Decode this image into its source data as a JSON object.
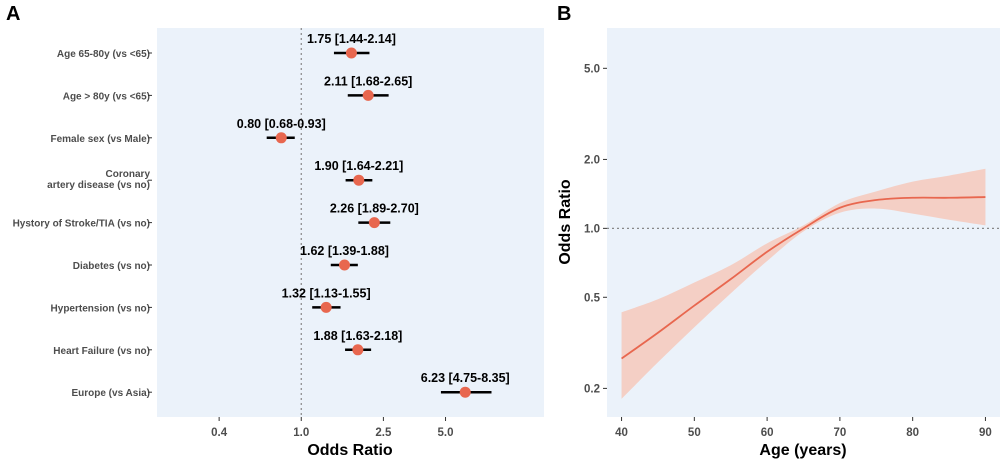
{
  "chart_data": [
    {
      "panel": "A",
      "type": "forest",
      "xlabel": "Odds Ratio",
      "xscale": "log",
      "xlim": [
        0.2,
        15
      ],
      "xticks": [
        0.4,
        1.0,
        2.5,
        5.0
      ],
      "xtick_labels": [
        "0.4",
        "1.0",
        "2.5",
        "5.0"
      ],
      "reference_line": 1.0,
      "background": "#ebf2fa",
      "point_color": "#e8674f",
      "rows": [
        {
          "label": [
            "Age 65-80y (vs <65)"
          ],
          "or": 1.75,
          "lo": 1.44,
          "hi": 2.14,
          "text": "1.75 [1.44-2.14]"
        },
        {
          "label": [
            "Age > 80y (vs <65)"
          ],
          "or": 2.11,
          "lo": 1.68,
          "hi": 2.65,
          "text": "2.11 [1.68-2.65]"
        },
        {
          "label": [
            "Female sex (vs Male)"
          ],
          "or": 0.8,
          "lo": 0.68,
          "hi": 0.93,
          "text": "0.80 [0.68-0.93]"
        },
        {
          "label": [
            "Coronary",
            "artery disease (vs no)"
          ],
          "or": 1.9,
          "lo": 1.64,
          "hi": 2.21,
          "text": "1.90 [1.64-2.21]"
        },
        {
          "label": [
            "Hystory of Stroke/TIA (vs no)"
          ],
          "or": 2.26,
          "lo": 1.89,
          "hi": 2.7,
          "text": "2.26 [1.89-2.70]"
        },
        {
          "label": [
            "Diabetes (vs no)"
          ],
          "or": 1.62,
          "lo": 1.39,
          "hi": 1.88,
          "text": "1.62 [1.39-1.88]"
        },
        {
          "label": [
            "Hypertension (vs no)"
          ],
          "or": 1.32,
          "lo": 1.13,
          "hi": 1.55,
          "text": "1.32 [1.13-1.55]"
        },
        {
          "label": [
            "Heart Failure (vs no)"
          ],
          "or": 1.88,
          "lo": 1.63,
          "hi": 2.18,
          "text": "1.88 [1.63-2.18]"
        },
        {
          "label": [
            "Europe (vs Asia)"
          ],
          "or": 6.23,
          "lo": 4.75,
          "hi": 8.35,
          "text": "6.23 [4.75-8.35]"
        }
      ]
    },
    {
      "panel": "B",
      "type": "line",
      "xlabel": "Age (years)",
      "ylabel": "Odds Ratio",
      "yscale": "log",
      "xlim": [
        38,
        92
      ],
      "ylim": [
        0.15,
        7.5
      ],
      "xticks": [
        40,
        50,
        60,
        70,
        80,
        90
      ],
      "xtick_labels": [
        "40",
        "50",
        "60",
        "70",
        "80",
        "90"
      ],
      "yticks": [
        0.2,
        0.5,
        1.0,
        2.0,
        5.0
      ],
      "ytick_labels": [
        "0.2",
        "0.5",
        "1.0",
        "2.0",
        "5.0"
      ],
      "reference_line": 1.0,
      "background": "#ebf2fa",
      "line_color": "#e8674f",
      "band_color": "#f6c9bb",
      "x": [
        40,
        45,
        50,
        55,
        60,
        65,
        70,
        75,
        80,
        85,
        90
      ],
      "y": [
        0.27,
        0.35,
        0.46,
        0.6,
        0.79,
        1.0,
        1.23,
        1.33,
        1.36,
        1.36,
        1.37
      ],
      "lower": [
        0.18,
        0.26,
        0.37,
        0.52,
        0.72,
        0.97,
        1.17,
        1.22,
        1.16,
        1.09,
        1.03
      ],
      "upper": [
        0.43,
        0.49,
        0.58,
        0.69,
        0.86,
        1.03,
        1.29,
        1.45,
        1.6,
        1.7,
        1.82
      ]
    }
  ]
}
